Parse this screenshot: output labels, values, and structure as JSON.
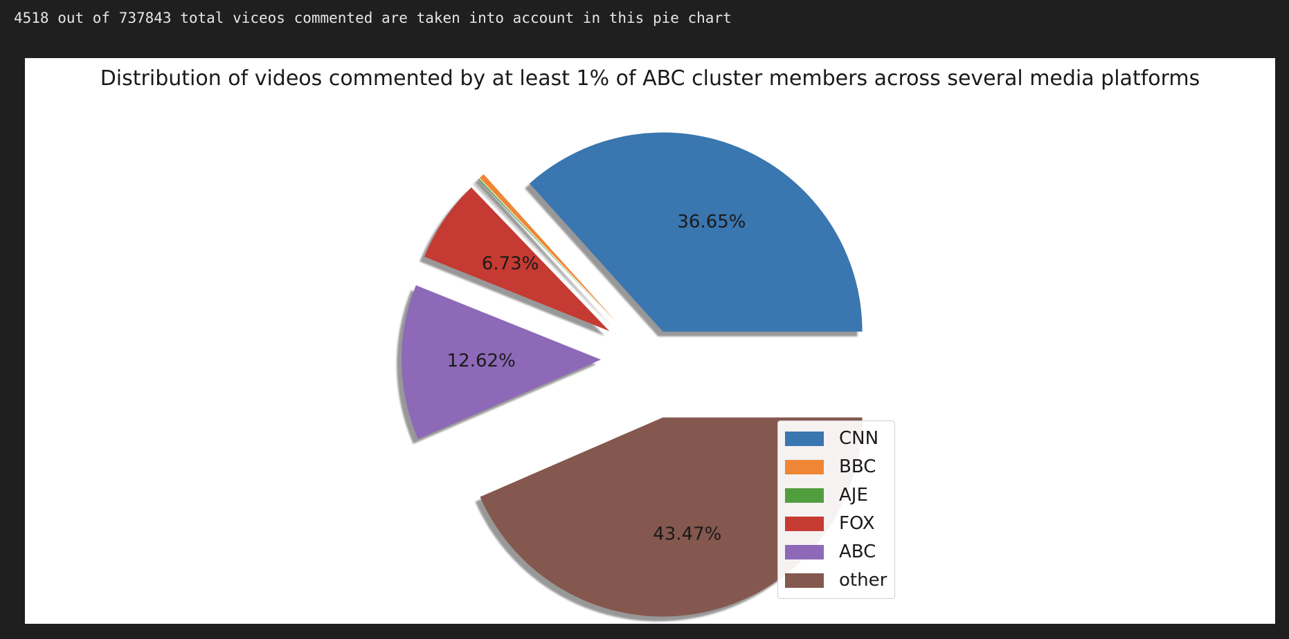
{
  "header": {
    "output_text": "4518 out of 737843 total viceos commented are taken into account in this pie chart"
  },
  "chart_data": {
    "type": "pie",
    "title": "Distribution of videos commented by at least 1% of ABC cluster members across several media platforms",
    "slices": [
      {
        "name": "CNN",
        "value": 36.65,
        "label": "36.65%",
        "color": "#3a76af",
        "explode": 0.15
      },
      {
        "name": "BBC",
        "value": 0.44,
        "label": "",
        "color": "#ef8636",
        "explode": 0.25
      },
      {
        "name": "AJE",
        "value": 0.09,
        "label": "",
        "color": "#519e3e",
        "explode": 0.25
      },
      {
        "name": "FOX",
        "value": 6.73,
        "label": "6.73%",
        "color": "#c53a32",
        "explode": 0.25
      },
      {
        "name": "ABC",
        "value": 12.62,
        "label": "12.62%",
        "color": "#8d69b8",
        "explode": 0.25
      },
      {
        "name": "other",
        "value": 43.47,
        "label": "43.47%",
        "color": "#84584e",
        "explode": 0.3
      }
    ],
    "start_angle": 0,
    "shadow": true,
    "legend_position": "lower-right"
  }
}
